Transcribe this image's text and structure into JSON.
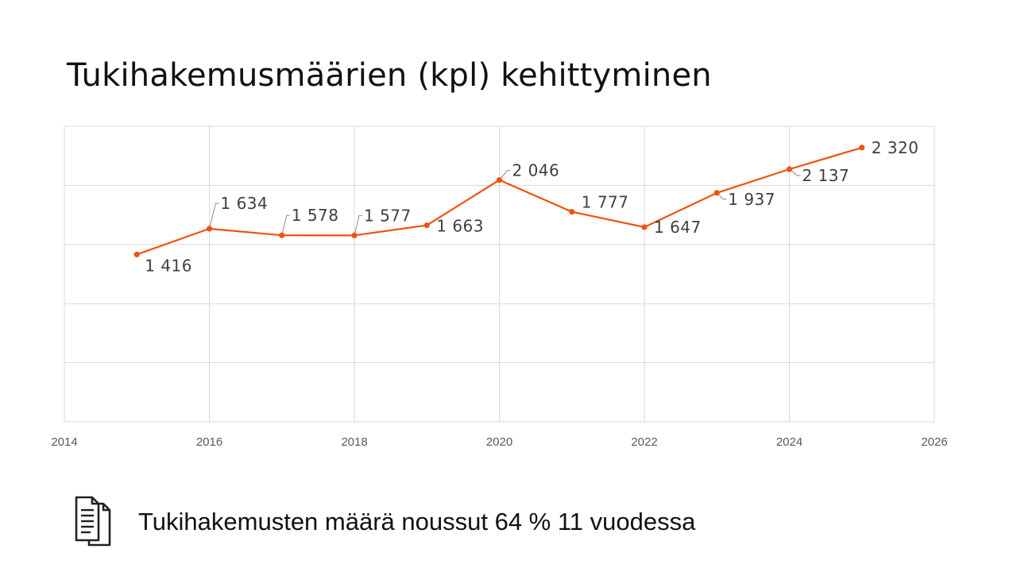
{
  "title": "Tukihakemusmäärien (kpl) kehittyminen",
  "footer": {
    "icon": "document-icon",
    "text": "Tukihakemusten määrä noussut 64 % 11 vuodessa"
  },
  "colors": {
    "series": "#ee5310",
    "grid": "#d9d9d9",
    "tick_text": "#595959",
    "label_text": "#404040"
  },
  "chart_data": {
    "type": "line",
    "title": "Tukihakemusmäärien (kpl) kehittyminen",
    "xlabel": "",
    "ylabel": "",
    "x": [
      2015,
      2016,
      2017,
      2018,
      2019,
      2020,
      2021,
      2022,
      2023,
      2024,
      2025
    ],
    "series": [
      {
        "values": [
          1416,
          1634,
          1578,
          1577,
          1663,
          2046,
          1777,
          1647,
          1937,
          2137,
          2320
        ],
        "data_labels": [
          "1 416",
          "1 634",
          "1 578",
          "1 577",
          "1 663",
          "2 046",
          "1 777",
          "1 647",
          "1 937",
          "2 137",
          "2 320"
        ]
      }
    ],
    "xlim": [
      2014,
      2026
    ],
    "ylim": [
      0,
      2500
    ],
    "x_ticks": [
      "2014",
      "2016",
      "2018",
      "2020",
      "2022",
      "2024",
      "2026"
    ],
    "y_tick_labels_shown": false,
    "grid": true,
    "legend": "none"
  }
}
